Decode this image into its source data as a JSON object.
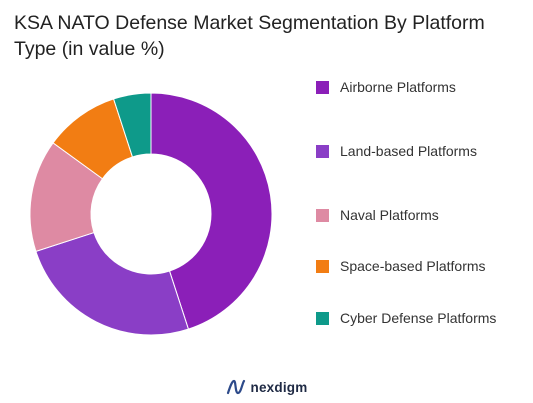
{
  "title": "KSA NATO Defense Market Segmentation By Platform Type (in value %)",
  "brand": {
    "name": "nexdigm",
    "logo_icon": "nexdigm-logo-icon"
  },
  "chart_data": {
    "type": "pie",
    "variant": "donut",
    "title": "KSA NATO Defense Market Segmentation By Platform Type (in value %)",
    "legend_position": "right",
    "categories": [
      "Airborne Platforms",
      "Land-based Platforms",
      "Naval Platforms",
      "Space-based Platforms",
      "Cyber Defense Platforms"
    ],
    "values": [
      45,
      25,
      15,
      10,
      5
    ],
    "colors": [
      "#8b1fb8",
      "#8a3ec6",
      "#de8aa3",
      "#f27d13",
      "#0e9a8a"
    ]
  }
}
